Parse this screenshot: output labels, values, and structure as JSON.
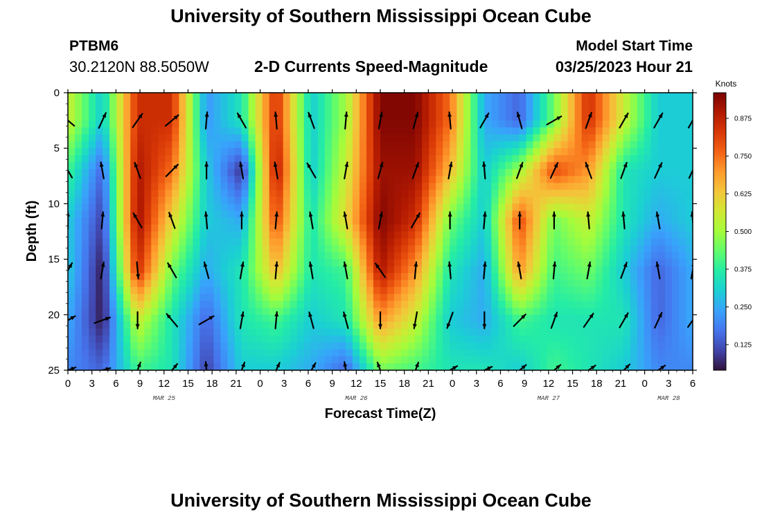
{
  "page": {
    "title": "University of Southern Mississippi Ocean Cube",
    "footer_title": "University of Southern Mississippi Ocean Cube"
  },
  "header": {
    "station": "PTBM6",
    "coords": "30.2120N  88.5050W",
    "subtitle": "2-D Currents Speed-Magnitude",
    "start_label": "Model Start Time",
    "start_value": "03/25/2023 Hour 21"
  },
  "colors": {
    "scale": [
      "#30123b",
      "#4145ab",
      "#4675ed",
      "#39a2fc",
      "#1bcfd4",
      "#24eca6",
      "#61fc6c",
      "#a4fc3b",
      "#d1e834",
      "#f3c63a",
      "#fe9b2d",
      "#f36315",
      "#d93806",
      "#b11901",
      "#7a0403"
    ],
    "arrow": "#000000"
  },
  "chart_data": {
    "type": "heatmap",
    "title": "2-D Currents Speed-Magnitude",
    "xlabel": "Forecast Time(Z)",
    "ylabel": "Depth (ft)",
    "x_tick_labels": [
      "0",
      "3",
      "6",
      "9",
      "12",
      "15",
      "18",
      "21",
      "0",
      "3",
      "6",
      "9",
      "12",
      "15",
      "18",
      "21",
      "0",
      "3",
      "6",
      "9",
      "12",
      "15",
      "18",
      "21",
      "0",
      "3",
      "6"
    ],
    "x_hours": [
      0,
      3,
      6,
      9,
      12,
      15,
      18,
      21,
      24,
      27,
      30,
      33,
      36,
      39,
      42,
      45,
      48,
      51,
      54,
      57,
      60,
      63,
      66,
      69,
      72,
      75,
      78
    ],
    "xlim_hours": [
      0,
      78
    ],
    "date_labels": [
      {
        "label": "MAR 25",
        "hour": 12
      },
      {
        "label": "MAR 26",
        "hour": 36
      },
      {
        "label": "MAR 27",
        "hour": 60
      },
      {
        "label": "MAR 28",
        "hour": 75
      }
    ],
    "y_ticks": [
      0,
      5,
      10,
      15,
      20,
      25
    ],
    "ylim": [
      0,
      25
    ],
    "colorbar": {
      "units": "Knots",
      "ticks": [
        "0.125",
        "0.250",
        "0.375",
        "0.500",
        "0.625",
        "0.750",
        "0.875"
      ],
      "range": [
        0.04,
        0.96
      ]
    },
    "times_hours": [
      0,
      4.3,
      8.7,
      13,
      17.3,
      21.7,
      26,
      30.4,
      34.7,
      39,
      43.4,
      47.7,
      52,
      56.4,
      60.7,
      65,
      69.4,
      73.7,
      78
    ],
    "depths_ft": [
      2.5,
      7,
      11.5,
      16,
      20.5,
      25
    ],
    "speed_knots": [
      [
        0.55,
        0.3,
        0.85,
        0.85,
        0.22,
        0.35,
        0.85,
        0.3,
        0.5,
        0.95,
        0.95,
        0.75,
        0.25,
        0.15,
        0.45,
        0.85,
        0.55,
        0.3,
        0.3
      ],
      [
        0.4,
        0.15,
        0.9,
        0.75,
        0.3,
        0.08,
        0.9,
        0.3,
        0.55,
        0.92,
        0.92,
        0.65,
        0.3,
        0.5,
        0.8,
        0.7,
        0.35,
        0.3,
        0.3
      ],
      [
        0.3,
        0.1,
        0.92,
        0.6,
        0.3,
        0.25,
        0.8,
        0.35,
        0.6,
        0.95,
        0.85,
        0.45,
        0.3,
        0.8,
        0.45,
        0.55,
        0.35,
        0.25,
        0.3
      ],
      [
        0.3,
        0.05,
        0.85,
        0.45,
        0.25,
        0.35,
        0.65,
        0.35,
        0.4,
        0.9,
        0.7,
        0.35,
        0.25,
        0.7,
        0.4,
        0.45,
        0.3,
        0.15,
        0.25
      ],
      [
        0.25,
        0.05,
        0.55,
        0.35,
        0.15,
        0.35,
        0.4,
        0.3,
        0.35,
        0.7,
        0.55,
        0.3,
        0.25,
        0.4,
        0.35,
        0.35,
        0.35,
        0.15,
        0.25
      ],
      [
        0.2,
        0.15,
        0.4,
        0.35,
        0.1,
        0.3,
        0.3,
        0.25,
        0.15,
        0.45,
        0.4,
        0.35,
        0.35,
        0.3,
        0.4,
        0.35,
        0.3,
        0.2,
        0.2
      ]
    ],
    "current_direction_deg": [
      [
        310,
        25,
        35,
        50,
        5,
        330,
        355,
        340,
        5,
        10,
        15,
        355,
        30,
        345,
        60,
        20,
        30,
        30,
        30
      ],
      [
        330,
        350,
        340,
        45,
        0,
        350,
        350,
        330,
        10,
        15,
        20,
        10,
        355,
        20,
        25,
        340,
        20,
        25,
        25
      ],
      [
        0,
        5,
        330,
        340,
        355,
        0,
        5,
        350,
        350,
        10,
        30,
        0,
        5,
        360,
        0,
        355,
        355,
        350,
        355
      ],
      [
        30,
        10,
        175,
        330,
        345,
        10,
        5,
        350,
        350,
        325,
        5,
        355,
        5,
        350,
        5,
        10,
        20,
        350,
        10
      ],
      [
        60,
        70,
        180,
        320,
        60,
        10,
        5,
        345,
        345,
        180,
        190,
        200,
        180,
        45,
        20,
        35,
        30,
        25,
        35
      ],
      [
        70,
        75,
        20,
        40,
        355,
        20,
        25,
        30,
        350,
        340,
        20,
        60,
        65,
        50,
        50,
        55,
        45,
        55,
        50
      ]
    ]
  }
}
